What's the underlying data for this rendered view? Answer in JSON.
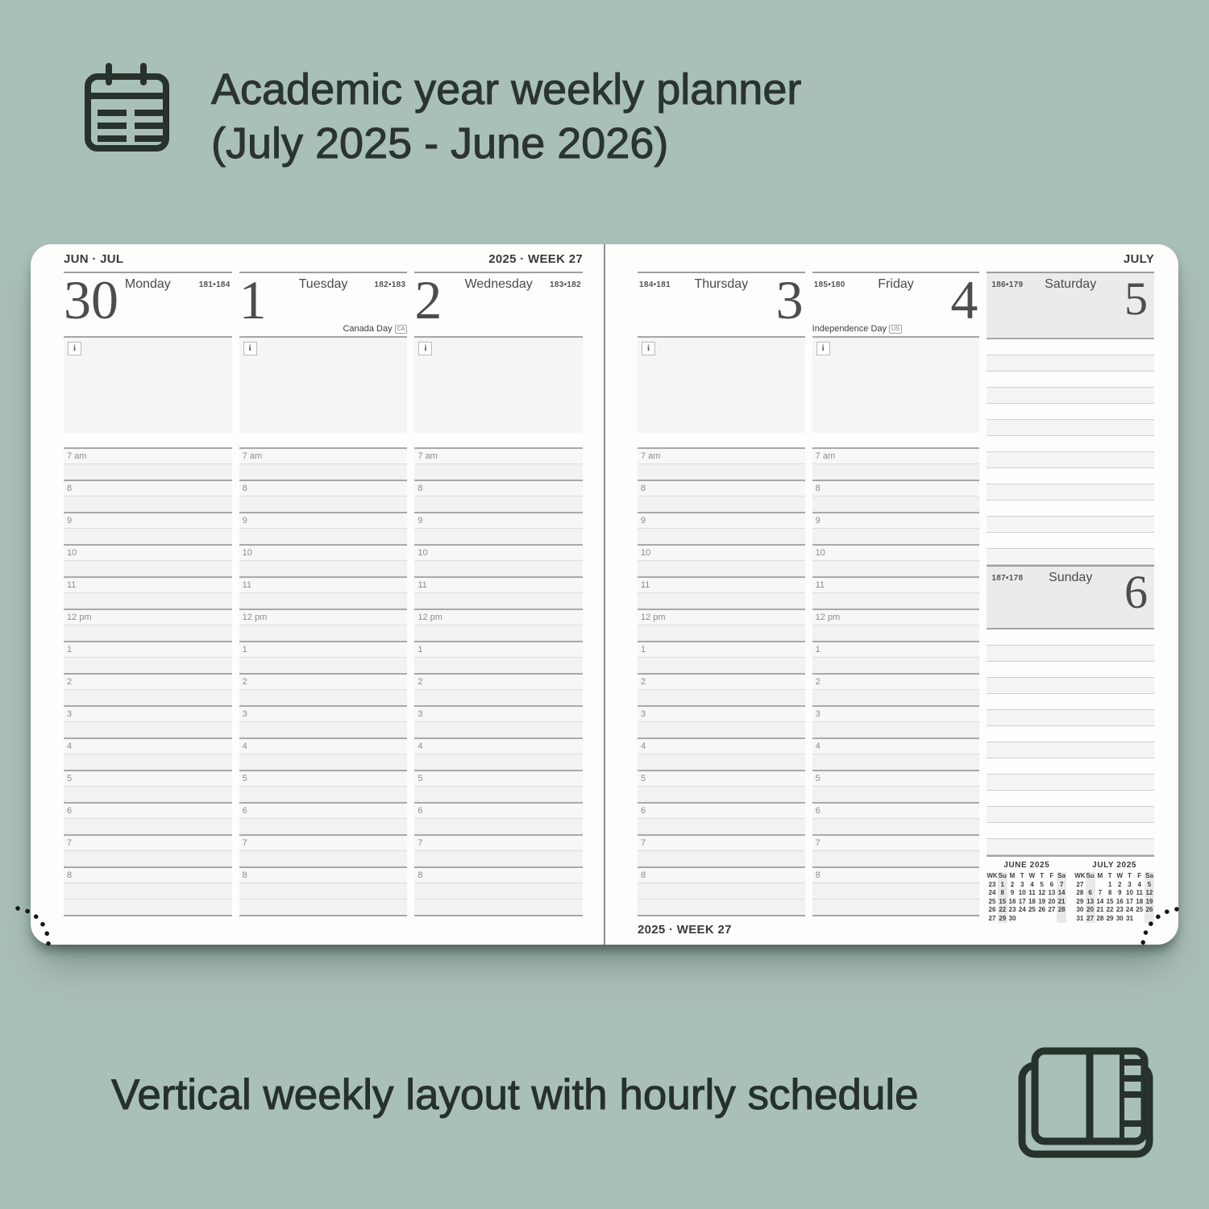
{
  "title": {
    "line1": "Academic year weekly planner",
    "line2": "(July 2025 - June 2026)"
  },
  "caption": {
    "text": "Vertical weekly layout with hourly schedule"
  },
  "colors": {
    "background": "#a9c0b8",
    "page": "#fdfdfc",
    "text_dark": "#2b342e",
    "shade_box": "#ebebe9",
    "notes_bg": "#f5f5f3"
  },
  "icons": {
    "hero": "calendar-icon",
    "footer": "open-notebook-icon",
    "info_label": "i"
  },
  "left_page": {
    "header_left": "JUN · JUL",
    "header_right": "2025 · WEEK 27",
    "days": [
      {
        "date": "30",
        "name": "Monday",
        "day_of_year": "181•184",
        "holiday": "",
        "holiday_badge": ""
      },
      {
        "date": "1",
        "name": "Tuesday",
        "day_of_year": "182•183",
        "holiday": "Canada Day",
        "holiday_badge": "CA"
      },
      {
        "date": "2",
        "name": "Wednesday",
        "day_of_year": "183•182",
        "holiday": "",
        "holiday_badge": ""
      }
    ]
  },
  "right_page": {
    "header_right": "JULY",
    "footer_left": "2025 · WEEK 27",
    "days": [
      {
        "date": "3",
        "name": "Thursday",
        "day_of_year": "184•181",
        "holiday": "",
        "holiday_badge": ""
      },
      {
        "date": "4",
        "name": "Friday",
        "day_of_year": "185•180",
        "holiday": "Independence Day",
        "holiday_badge": "US"
      }
    ],
    "weekend": [
      {
        "date": "5",
        "name": "Saturday",
        "day_of_year": "186•179"
      },
      {
        "date": "6",
        "name": "Sunday",
        "day_of_year": "187•178"
      }
    ]
  },
  "schedule": {
    "hours": [
      "7 am",
      "8",
      "9",
      "10",
      "11",
      "12 pm",
      "1",
      "2",
      "3",
      "4",
      "5",
      "6",
      "7",
      "8"
    ]
  },
  "mini_calendars": [
    {
      "title": "JUNE 2025",
      "headers": [
        "WK",
        "Su",
        "M",
        "T",
        "W",
        "T",
        "F",
        "Sa"
      ],
      "weeks": [
        [
          "23",
          "1",
          "2",
          "3",
          "4",
          "5",
          "6",
          "7"
        ],
        [
          "24",
          "8",
          "9",
          "10",
          "11",
          "12",
          "13",
          "14"
        ],
        [
          "25",
          "15",
          "16",
          "17",
          "18",
          "19",
          "20",
          "21"
        ],
        [
          "26",
          "22",
          "23",
          "24",
          "25",
          "26",
          "27",
          "28"
        ],
        [
          "27",
          "29",
          "30",
          "",
          "",
          "",
          "",
          ""
        ]
      ]
    },
    {
      "title": "JULY 2025",
      "headers": [
        "WK",
        "Su",
        "M",
        "T",
        "W",
        "T",
        "F",
        "Sa"
      ],
      "weeks": [
        [
          "27",
          "",
          "",
          "1",
          "2",
          "3",
          "4",
          "5"
        ],
        [
          "28",
          "6",
          "7",
          "8",
          "9",
          "10",
          "11",
          "12"
        ],
        [
          "29",
          "13",
          "14",
          "15",
          "16",
          "17",
          "18",
          "19"
        ],
        [
          "30",
          "20",
          "21",
          "22",
          "23",
          "24",
          "25",
          "26"
        ],
        [
          "31",
          "27",
          "28",
          "29",
          "30",
          "31",
          "",
          ""
        ]
      ]
    }
  ]
}
